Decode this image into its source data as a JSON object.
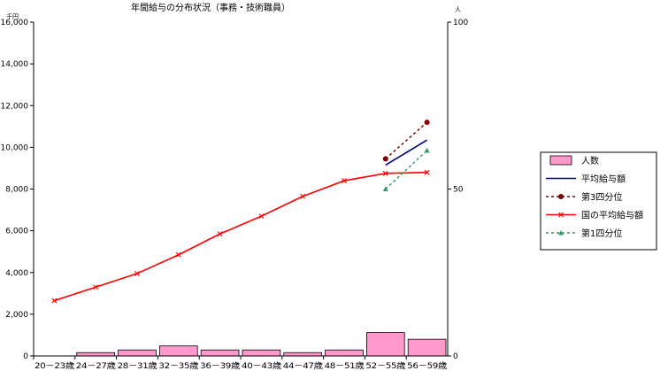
{
  "chart_data": {
    "type": "bar+line",
    "title": "年間給与の分布状況（事務・技術職員）",
    "y_left_unit": "千円",
    "y_right_unit": "人",
    "y_left_ticks": [
      "0",
      "2,000",
      "4,000",
      "6,000",
      "8,000",
      "10,000",
      "12,000",
      "14,000",
      "16,000"
    ],
    "y_right_ticks": [
      "0",
      "50",
      "100"
    ],
    "ylim_left": [
      0,
      16000
    ],
    "ylim_right": [
      0,
      100
    ],
    "categories": [
      "20－23歳",
      "24－27歳",
      "28－31歳",
      "32－35歳",
      "36－39歳",
      "40－43歳",
      "44－47歳",
      "48－51歳",
      "52－55歳",
      "56－59歳"
    ],
    "series": [
      {
        "name": "人数",
        "type": "bar",
        "axis": "right",
        "color": "#ff99cc",
        "values": [
          0,
          1,
          1.8,
          3,
          1.8,
          1.8,
          1,
          1.8,
          7,
          5
        ]
      },
      {
        "name": "平均給与額",
        "type": "line",
        "axis": "left",
        "color": "#000080",
        "values": [
          null,
          null,
          null,
          null,
          null,
          null,
          null,
          null,
          9150,
          10350
        ]
      },
      {
        "name": "第3四分位",
        "type": "line",
        "axis": "left",
        "color": "#800000",
        "dashed": true,
        "marker": "circle",
        "values": [
          null,
          null,
          null,
          null,
          null,
          null,
          null,
          null,
          9450,
          11200
        ]
      },
      {
        "name": "国の平均給与額",
        "type": "line",
        "axis": "left",
        "color": "#ff0000",
        "marker": "x",
        "values": [
          2650,
          3300,
          3950,
          4850,
          5850,
          6700,
          7650,
          8400,
          8750,
          8800
        ]
      },
      {
        "name": "第1四分位",
        "type": "line",
        "axis": "left",
        "color": "#339966",
        "dashed": true,
        "marker": "triangle",
        "values": [
          null,
          null,
          null,
          null,
          null,
          null,
          null,
          null,
          8000,
          9850
        ]
      }
    ],
    "legend_position": "right",
    "grid": false
  }
}
